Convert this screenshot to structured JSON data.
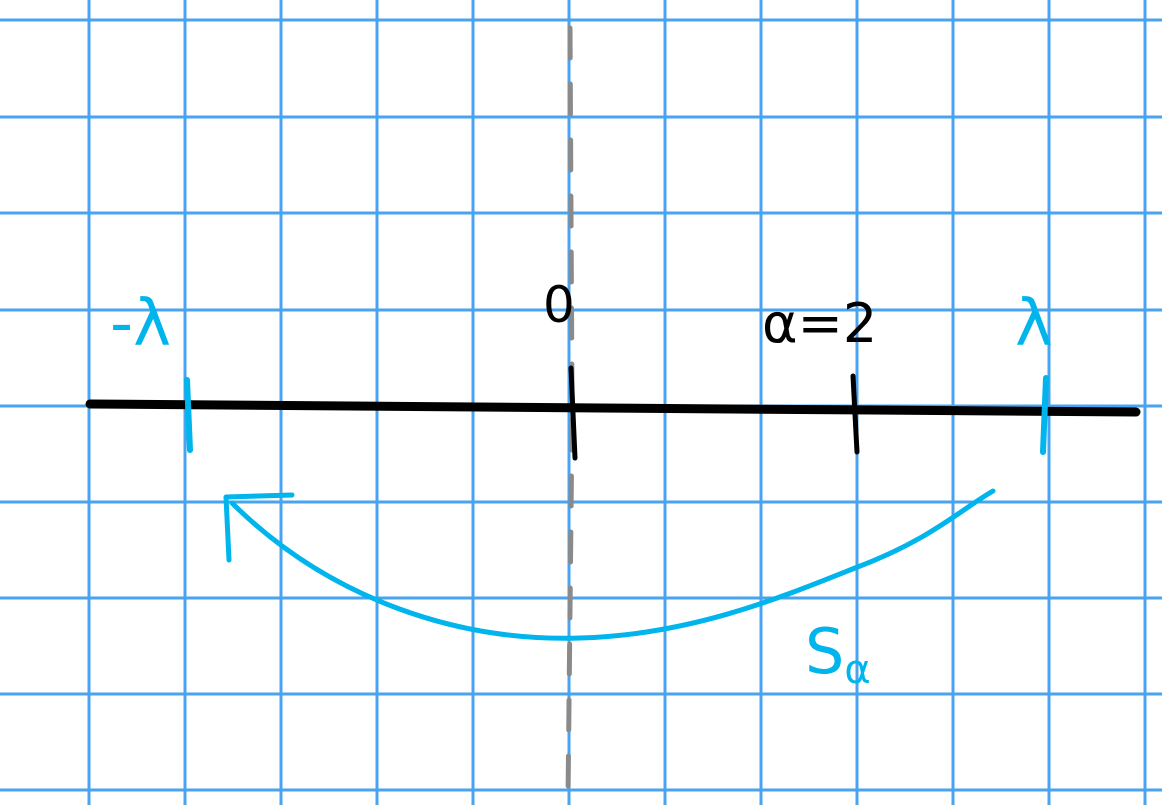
{
  "labels": {
    "minus_lambda": "-λ",
    "zero": "0",
    "alpha_eq": "α=2",
    "lambda": "λ",
    "s_alpha_main": "S",
    "s_alpha_sub": "α"
  },
  "colors": {
    "background": "#ffffff",
    "grid": "#4aa3f0",
    "axis": "#000000",
    "accent": "#00b4ec",
    "symmetry_line": "#8a8a8a"
  }
}
